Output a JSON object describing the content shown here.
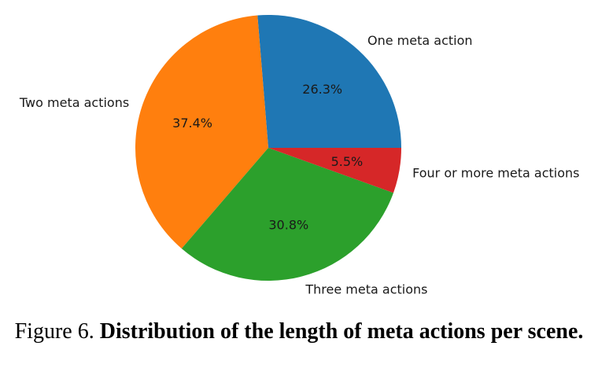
{
  "caption": {
    "prefix": "Figure 6.",
    "title": "Distribution of the length of meta actions per scene."
  },
  "chart_data": {
    "type": "pie",
    "title": "",
    "labels": [
      "One meta action",
      "Two meta actions",
      "Three meta actions",
      "Four or more meta actions"
    ],
    "values": [
      26.3,
      37.4,
      30.8,
      5.5
    ],
    "pct_labels": [
      "26.3%",
      "37.4%",
      "30.8%",
      "5.5%"
    ],
    "colors": [
      "#1f77b4",
      "#ff7f0e",
      "#2ca02c",
      "#d62728"
    ],
    "start_angle_deg": 0,
    "direction": "counterclockwise",
    "label_distance": 1.1,
    "pct_distance": 0.6,
    "legend": "none",
    "background": "#ffffff",
    "text_color": "#1a1a1a"
  }
}
